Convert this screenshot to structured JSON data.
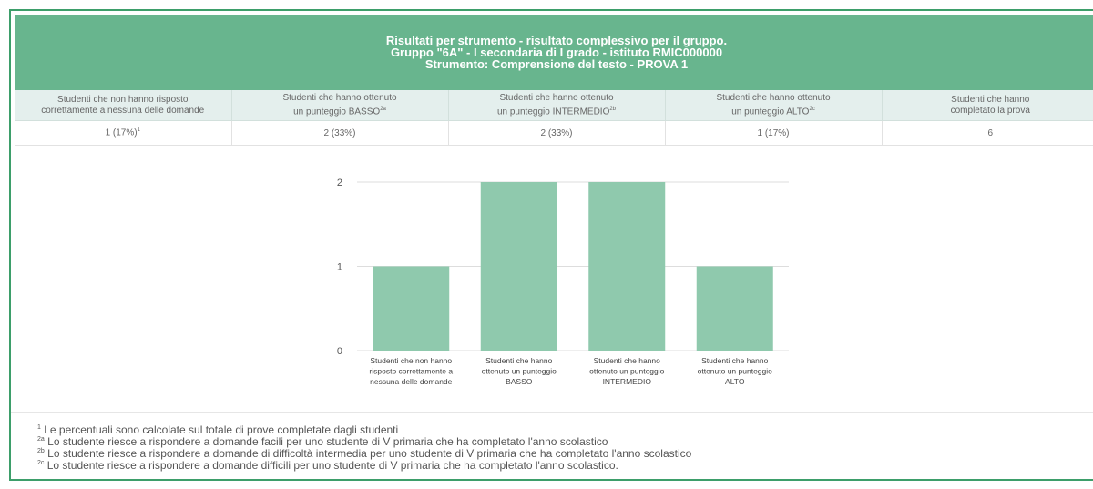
{
  "header": {
    "line1": "Risultati per strumento - risultato complessivo per il gruppo.",
    "line2": "Gruppo \"6A\" - I secondaria di I grado - istituto RMIC000000",
    "line3": "Strumento: Comprensione del testo - PROVA 1"
  },
  "table": {
    "columns": [
      {
        "label_line1": "Studenti che non hanno risposto",
        "label_line2": "correttamente a nessuna delle domande",
        "sup": "",
        "value": "1 (17%)",
        "value_sup": "1"
      },
      {
        "label_line1": "Studenti che hanno ottenuto",
        "label_line2": "un punteggio BASSO",
        "sup": "2a",
        "value": "2 (33%)",
        "value_sup": ""
      },
      {
        "label_line1": "Studenti che hanno ottenuto",
        "label_line2": "un punteggio INTERMEDIO",
        "sup": "2b",
        "value": "2 (33%)",
        "value_sup": ""
      },
      {
        "label_line1": "Studenti che hanno ottenuto",
        "label_line2": "un punteggio ALTO",
        "sup": "2c",
        "value": "1 (17%)",
        "value_sup": ""
      },
      {
        "label_line1": "Studenti che hanno",
        "label_line2": "completato la prova",
        "sup": "",
        "value": "6",
        "value_sup": ""
      }
    ]
  },
  "chart_data": {
    "type": "bar",
    "categories": [
      [
        "Studenti che non hanno",
        "risposto correttamente a",
        "nessuna delle domande"
      ],
      [
        "Studenti che hanno",
        "ottenuto un punteggio",
        "BASSO"
      ],
      [
        "Studenti che hanno",
        "ottenuto un punteggio",
        "INTERMEDIO"
      ],
      [
        "Studenti che hanno",
        "ottenuto un punteggio",
        "ALTO"
      ]
    ],
    "values": [
      1,
      2,
      2,
      1
    ],
    "ylim": [
      0,
      2
    ],
    "yticks": [
      0,
      1,
      2
    ],
    "grid": true,
    "bar_color": "#8fc9ad",
    "grid_color": "#dddddd"
  },
  "footnotes": [
    {
      "mark": "1",
      "text": "Le percentuali sono calcolate sul totale di prove completate dagli studenti"
    },
    {
      "mark": "2a",
      "text": "Lo studente riesce a rispondere a domande facili per uno studente di V primaria che ha completato l'anno scolastico"
    },
    {
      "mark": "2b",
      "text": "Lo studente riesce a rispondere a domande di difficoltà intermedia per uno studente di V primaria che ha completato l'anno scolastico"
    },
    {
      "mark": "2c",
      "text": "Lo studente riesce a rispondere a domande difficili per uno studente di V primaria che ha completato l'anno scolastico."
    }
  ],
  "colors": {
    "header_bg": "#68b58e",
    "border": "#3d9e6a",
    "th_bg": "#e4efed"
  }
}
